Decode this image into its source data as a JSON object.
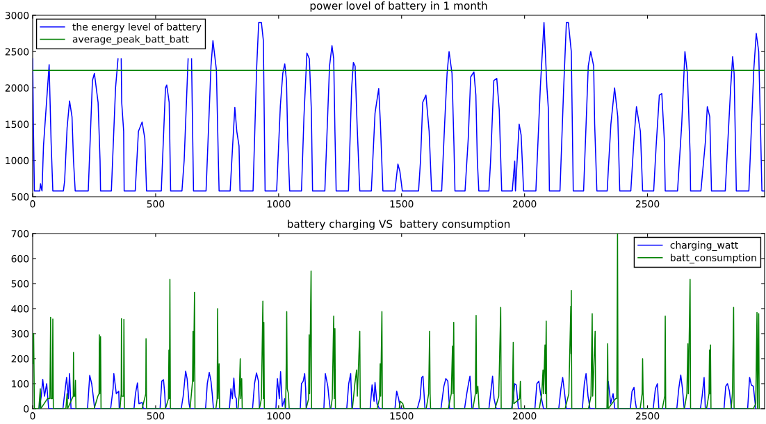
{
  "chart_data": [
    {
      "type": "line",
      "title": "power lovel of battery in 1 month",
      "xlim": [
        0,
        2976
      ],
      "xticks": [
        0,
        500,
        1000,
        1500,
        2000,
        2500
      ],
      "ylim": [
        500,
        3000
      ],
      "yticks": [
        500,
        1000,
        1500,
        2000,
        2500,
        3000
      ],
      "legend": "top left",
      "grid": false,
      "series": [
        {
          "name": "the energy level of battery",
          "color": "#0000ff",
          "x": [
            0,
            3,
            7,
            29,
            32,
            35,
            38,
            44,
            67,
            75,
            82,
            125,
            130,
            140,
            150,
            160,
            166,
            173,
            226,
            243,
            251,
            266,
            274,
            276,
            320,
            337,
            347,
            354,
            360,
            362,
            370,
            372,
            417,
            430,
            445,
            456,
            463,
            523,
            540,
            545,
            555,
            561,
            607,
            616,
            632,
            639,
            646,
            654,
            705,
            725,
            733,
            747,
            755,
            758,
            803,
            813,
            822,
            830,
            839,
            843,
            896,
            911,
            919,
            930,
            938,
            945,
            992,
            1007,
            1017,
            1025,
            1032,
            1037,
            1045,
            1093,
            1103,
            1115,
            1125,
            1133,
            1138,
            1188,
            1207,
            1217,
            1224,
            1229,
            1234,
            1284,
            1297,
            1304,
            1311,
            1319,
            1330,
            1377,
            1392,
            1407,
            1414,
            1424,
            1473,
            1485,
            1493,
            1503,
            1569,
            1577,
            1586,
            1599,
            1612,
            1622,
            1663,
            1675,
            1685,
            1693,
            1705,
            1713,
            1717,
            1758,
            1771,
            1781,
            1794,
            1802,
            1808,
            1814,
            1855,
            1862,
            1875,
            1887,
            1897,
            1907,
            1950,
            1960,
            1963,
            1978,
            1986,
            1996,
            2046,
            2064,
            2079,
            2091,
            2097,
            2101,
            2144,
            2159,
            2170,
            2178,
            2190,
            2198,
            2240,
            2259,
            2269,
            2281,
            2285,
            2294,
            2336,
            2341,
            2351,
            2366,
            2379,
            2387,
            2432,
            2445,
            2455,
            2471,
            2480,
            2525,
            2535,
            2548,
            2558,
            2568,
            2572,
            2622,
            2639,
            2652,
            2662,
            2673,
            2675,
            2717,
            2735,
            2743,
            2753,
            2760,
            2816,
            2838,
            2846,
            2852,
            2861,
            2912,
            2932,
            2942,
            2952,
            2959,
            2965,
            2976
          ],
          "values": [
            2400,
            1500,
            580,
            580,
            680,
            620,
            580,
            1200,
            2320,
            1250,
            580,
            580,
            720,
            1450,
            1820,
            1600,
            1000,
            580,
            580,
            2100,
            2200,
            1800,
            1000,
            580,
            580,
            2000,
            2400,
            null,
            2400,
            1800,
            1400,
            580,
            580,
            1400,
            1530,
            1300,
            580,
            580,
            2000,
            2040,
            1800,
            580,
            580,
            1000,
            2400,
            null,
            2400,
            580,
            580,
            2300,
            2650,
            2250,
            1000,
            580,
            580,
            1200,
            1730,
            1400,
            1200,
            580,
            580,
            2300,
            2900,
            2900,
            2650,
            580,
            580,
            1750,
            2200,
            2330,
            2100,
            1300,
            580,
            580,
            1600,
            2480,
            2400,
            1700,
            580,
            580,
            2300,
            2580,
            2400,
            1400,
            580,
            580,
            2000,
            2350,
            2300,
            1500,
            580,
            580,
            1650,
            1990,
            1500,
            580,
            580,
            950,
            850,
            580,
            580,
            1000,
            1800,
            1900,
            1400,
            580,
            580,
            1500,
            2200,
            2500,
            2200,
            1200,
            580,
            580,
            1300,
            2150,
            2220,
            1900,
            1000,
            580,
            580,
            1000,
            2100,
            2130,
            1700,
            580,
            580,
            990,
            580,
            1500,
            1350,
            580,
            580,
            2000,
            2900,
            2000,
            1700,
            580,
            580,
            2000,
            2900,
            2900,
            2500,
            580,
            580,
            2300,
            2500,
            2300,
            1500,
            580,
            580,
            900,
            1500,
            2000,
            1600,
            580,
            580,
            1300,
            1740,
            1400,
            580,
            580,
            1200,
            1900,
            1920,
            1300,
            580,
            580,
            1500,
            2500,
            2200,
            1100,
            580,
            580,
            1250,
            1740,
            1600,
            580,
            580,
            2000,
            2430,
            2200,
            580,
            580,
            2250,
            2750,
            2500,
            1500,
            580,
            580
          ]
        },
        {
          "name": "average_peak_batt_batt",
          "color": "#008000",
          "x": [
            0,
            2976
          ],
          "values": [
            2240,
            2240
          ]
        }
      ]
    },
    {
      "type": "line",
      "title": "battery charging VS  battery consumption",
      "xlim": [
        0,
        2976
      ],
      "xticks": [
        0,
        500,
        1000,
        1500,
        2000,
        2500
      ],
      "ylim": [
        0,
        700
      ],
      "yticks": [
        0,
        100,
        200,
        300,
        400,
        500,
        600,
        700
      ],
      "legend": "top right",
      "grid": false,
      "series": [
        {
          "name": "charging_watt",
          "color": "#0000ff",
          "x": [
            27,
            35,
            41,
            48,
            57,
            65,
            123,
            130,
            138,
            145,
            150,
            156,
            223,
            232,
            240,
            245,
            252,
            317,
            327,
            330,
            340,
            350,
            352,
            412,
            418,
            426,
            432,
            445,
            450,
            518,
            525,
            532,
            537,
            540,
            604,
            612,
            618,
            622,
            628,
            636,
            640,
            703,
            710,
            718,
            725,
            730,
            735,
            800,
            806,
            812,
            818,
            823,
            828,
            830,
            894,
            902,
            910,
            918,
            922,
            989,
            995,
            1003,
            1008,
            1015,
            1025,
            1027,
            1088,
            1093,
            1100,
            1106,
            1110,
            1112,
            1184,
            1190,
            1200,
            1205,
            1210,
            1277,
            1285,
            1293,
            1298,
            1372,
            1380,
            1388,
            1392,
            1400,
            1410,
            1473,
            1480,
            1488,
            1495,
            1564,
            1575,
            1582,
            1587,
            1595,
            1660,
            1672,
            1680,
            1688,
            1695,
            1756,
            1765,
            1772,
            1778,
            1786,
            1855,
            1862,
            1870,
            1876,
            1885,
            1947,
            1955,
            1960,
            1966,
            1975,
            2042,
            2050,
            2058,
            2065,
            2077,
            2139,
            2148,
            2155,
            2163,
            2170,
            2235,
            2243,
            2250,
            2258,
            2266,
            2336,
            2340,
            2345,
            2350,
            2360,
            2367,
            2430,
            2437,
            2445,
            2450,
            2455,
            2523,
            2532,
            2540,
            2546,
            2619,
            2627,
            2635,
            2642,
            2649,
            2715,
            2722,
            2730,
            2735,
            2811,
            2818,
            2825,
            2833,
            2841,
            2907,
            2915,
            2922,
            2930,
            2940
          ],
          "values": [
            0,
            50,
            117,
            50,
            100,
            0,
            0,
            60,
            125,
            40,
            140,
            0,
            0,
            133,
            100,
            60,
            0,
            0,
            80,
            140,
            60,
            70,
            0,
            0,
            60,
            103,
            20,
            25,
            0,
            0,
            110,
            116,
            60,
            0,
            0,
            50,
            110,
            150,
            120,
            20,
            0,
            0,
            100,
            145,
            110,
            60,
            0,
            0,
            80,
            40,
            122,
            50,
            40,
            0,
            0,
            100,
            143,
            110,
            0,
            0,
            120,
            40,
            148,
            10,
            40,
            0,
            0,
            100,
            110,
            140,
            80,
            0,
            0,
            140,
            90,
            40,
            0,
            0,
            100,
            140,
            0,
            0,
            95,
            30,
            105,
            20,
            0,
            0,
            70,
            40,
            0,
            0,
            40,
            125,
            130,
            0,
            0,
            90,
            120,
            110,
            0,
            0,
            60,
            100,
            130,
            0,
            0,
            60,
            130,
            40,
            0,
            0,
            50,
            100,
            95,
            0,
            0,
            100,
            110,
            60,
            0,
            0,
            80,
            125,
            60,
            0,
            0,
            100,
            140,
            50,
            0,
            0,
            110,
            70,
            20,
            60,
            0,
            0,
            70,
            85,
            30,
            0,
            0,
            80,
            100,
            0,
            0,
            80,
            135,
            80,
            0,
            0,
            50,
            125,
            0,
            0,
            90,
            100,
            70,
            0,
            0,
            125,
            95,
            90,
            0
          ]
        },
        {
          "name": "batt_consumption",
          "color": "#008000",
          "x": [
            0,
            2,
            4,
            7,
            25,
            31,
            33,
            60,
            70,
            73,
            75,
            80,
            82,
            84,
            135,
            140,
            142,
            160,
            165,
            166,
            168,
            172,
            174,
            176,
            250,
            265,
            270,
            271,
            273,
            276,
            278,
            355,
            360,
            361,
            363,
            370,
            371,
            373,
            445,
            460,
            461,
            463,
            540,
            552,
            554,
            556,
            558,
            560,
            640,
            650,
            652,
            654,
            658,
            660,
            745,
            750,
            752,
            754,
            758,
            760,
            835,
            840,
            844,
            846,
            850,
            852,
            922,
            930,
            936,
            938,
            940,
            942,
            1028,
            1030,
            1033,
            1035,
            1040,
            1043,
            1112,
            1122,
            1124,
            1126,
            1132,
            1134,
            1212,
            1218,
            1224,
            1226,
            1229,
            1231,
            1300,
            1310,
            1317,
            1320,
            1330,
            1332,
            1400,
            1410,
            1413,
            1415,
            1420,
            1422,
            1490,
            1495,
            1505,
            1510,
            1600,
            1610,
            1614,
            1616,
            1618,
            1690,
            1702,
            1707,
            1709,
            1712,
            1714,
            1790,
            1800,
            1803,
            1805,
            1810,
            1815,
            1880,
            1895,
            1903,
            1905,
            1950,
            1954,
            1956,
            1980,
            1983,
            1986,
            2060,
            2070,
            2075,
            2077,
            2083,
            2085,
            2088,
            2090,
            2165,
            2180,
            2188,
            2189,
            2190,
            2192,
            2260,
            2270,
            2275,
            2277,
            2287,
            2289,
            2335,
            2338,
            2340,
            2370,
            2375,
            2378,
            2380,
            2470,
            2478,
            2480,
            2482,
            2485,
            2560,
            2570,
            2572,
            2574,
            2650,
            2660,
            2664,
            2666,
            2673,
            2675,
            2740,
            2750,
            2752,
            2754,
            2756,
            2758,
            2840,
            2845,
            2850,
            2852,
            2930,
            2940,
            2945,
            2947,
            2952,
            2954
          ],
          "values": [
            300,
            180,
            300,
            0,
            0,
            80,
            0,
            40,
            40,
            365,
            40,
            40,
            358,
            0,
            0,
            60,
            0,
            40,
            50,
            225,
            50,
            50,
            113,
            0,
            0,
            50,
            60,
            295,
            60,
            288,
            0,
            0,
            60,
            360,
            50,
            50,
            357,
            0,
            0,
            60,
            280,
            0,
            0,
            40,
            235,
            40,
            517,
            0,
            0,
            110,
            310,
            110,
            465,
            0,
            0,
            40,
            400,
            40,
            180,
            0,
            0,
            60,
            200,
            40,
            120,
            0,
            0,
            40,
            430,
            40,
            345,
            0,
            0,
            90,
            388,
            80,
            60,
            0,
            0,
            40,
            295,
            60,
            550,
            0,
            0,
            40,
            370,
            40,
            320,
            0,
            0,
            100,
            155,
            50,
            310,
            0,
            0,
            40,
            180,
            50,
            388,
            0,
            0,
            30,
            20,
            0,
            0,
            60,
            310,
            60,
            0,
            0,
            60,
            250,
            60,
            345,
            0,
            0,
            60,
            373,
            60,
            90,
            0,
            0,
            50,
            405,
            0,
            0,
            265,
            20,
            40,
            110,
            0,
            0,
            60,
            155,
            60,
            255,
            60,
            350,
            0,
            0,
            60,
            410,
            220,
            473,
            0,
            0,
            50,
            380,
            50,
            310,
            0,
            0,
            260,
            0,
            40,
            40,
            700,
            0,
            0,
            60,
            200,
            60,
            0,
            0,
            50,
            370,
            0,
            0,
            60,
            260,
            60,
            517,
            0,
            0,
            60,
            235,
            60,
            255,
            0,
            0,
            60,
            405,
            0,
            0,
            20,
            385,
            0,
            380,
            0
          ]
        }
      ]
    }
  ]
}
